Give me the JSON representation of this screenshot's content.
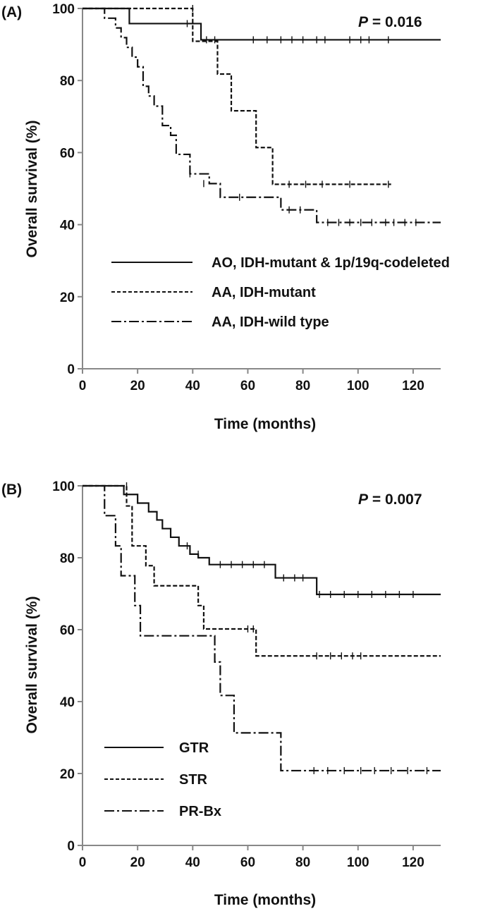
{
  "chart_data": [
    {
      "type": "line",
      "panel_label": "(A)",
      "p_value_label": "P",
      "p_value": "= 0.016",
      "xlabel": "Time (months)",
      "ylabel": "Overall survival (%)",
      "xlim": [
        0,
        130
      ],
      "ylim": [
        0,
        100
      ],
      "xticks": [
        "0",
        "20",
        "40",
        "60",
        "80",
        "100",
        "120"
      ],
      "yticks": [
        "0",
        "20",
        "40",
        "60",
        "80",
        "100"
      ],
      "grid": false,
      "legend_position": "center-right",
      "series": [
        {
          "name": "AO, IDH-mutant & 1p/19q-codeleted",
          "style": "solid",
          "x": [
            0,
            17,
            43,
            130
          ],
          "y": [
            100,
            95.8,
            91.3,
            91.3
          ],
          "censored_x": [
            38,
            45,
            48,
            62,
            67,
            72,
            76,
            80,
            85,
            88,
            97,
            101,
            104,
            111
          ],
          "censored_y": [
            95.8,
            91.3,
            91.3,
            91.3,
            91.3,
            91.3,
            91.3,
            91.3,
            91.3,
            91.3,
            91.3,
            91.3,
            91.3,
            91.3
          ]
        },
        {
          "name": "AA, IDH-mutant",
          "style": "dashed",
          "x": [
            0,
            40,
            49,
            54,
            63,
            69,
            112
          ],
          "y": [
            100,
            90.9,
            81.8,
            71.6,
            61.4,
            51.2,
            51.2
          ],
          "censored_x": [
            40,
            75,
            81,
            87,
            97,
            111
          ],
          "censored_y": [
            100,
            51.2,
            51.2,
            51.2,
            51.2,
            51.2
          ]
        },
        {
          "name": "AA, IDH-wild type",
          "style": "dash-dot",
          "x": [
            0,
            8,
            12,
            14,
            16,
            18,
            20,
            22,
            24,
            26,
            29,
            32,
            34,
            39,
            42,
            46,
            50,
            72,
            85,
            130
          ],
          "y": [
            100,
            97.3,
            94.6,
            91.9,
            89.2,
            86.5,
            83.8,
            78.4,
            75.7,
            72.9,
            67.5,
            64.8,
            59.5,
            54.1,
            54.1,
            51.4,
            47.6,
            44.1,
            40.6,
            40.6
          ],
          "censored_x": [
            39,
            44,
            57,
            75,
            79,
            89,
            93,
            97,
            101,
            105,
            110,
            113,
            117,
            121
          ],
          "censored_y": [
            54.1,
            51.4,
            47.6,
            44.1,
            44.1,
            40.6,
            40.6,
            40.6,
            40.6,
            40.6,
            40.6,
            40.6,
            40.6,
            40.6
          ]
        }
      ]
    },
    {
      "type": "line",
      "panel_label": "(B)",
      "p_value_label": "P",
      "p_value": "= 0.007",
      "xlabel": "Time (months)",
      "ylabel": "Overall survival (%)",
      "xlim": [
        0,
        130
      ],
      "ylim": [
        0,
        100
      ],
      "xticks": [
        "0",
        "20",
        "40",
        "60",
        "80",
        "100",
        "120"
      ],
      "yticks": [
        "0",
        "20",
        "40",
        "60",
        "80",
        "100"
      ],
      "grid": false,
      "legend_position": "lower-left",
      "series": [
        {
          "name": "GTR",
          "style": "solid",
          "x": [
            0,
            15,
            20,
            24,
            27,
            29,
            32,
            35,
            39,
            42,
            46,
            70,
            85,
            130
          ],
          "y": [
            100,
            97.6,
            95.2,
            92.8,
            90.5,
            88.1,
            85.7,
            83.3,
            81.0,
            80.0,
            78.1,
            74.4,
            69.8,
            69.8
          ],
          "censored_x": [
            38,
            42,
            50,
            54,
            58,
            62,
            66,
            73,
            77,
            80,
            86,
            90,
            95,
            100,
            105,
            110,
            115,
            120
          ],
          "censored_y": [
            83.3,
            81.0,
            78.1,
            78.1,
            78.1,
            78.1,
            78.1,
            74.4,
            74.4,
            74.4,
            69.8,
            69.8,
            69.8,
            69.8,
            69.8,
            69.8,
            69.8,
            69.8
          ]
        },
        {
          "name": "STR",
          "style": "dashed",
          "x": [
            0,
            16,
            18,
            23,
            26,
            42,
            44,
            63,
            130
          ],
          "y": [
            100,
            94.4,
            83.3,
            77.8,
            72.2,
            66.7,
            60.2,
            52.7,
            52.7
          ],
          "censored_x": [
            16,
            60,
            62,
            85,
            90,
            94,
            98,
            101
          ],
          "censored_y": [
            100,
            60.2,
            60.2,
            52.7,
            52.7,
            52.7,
            52.7,
            52.7
          ]
        },
        {
          "name": "PR-Bx",
          "style": "dash-dot",
          "x": [
            0,
            8,
            12,
            14,
            19,
            21,
            48,
            50,
            55,
            72,
            130
          ],
          "y": [
            100,
            91.7,
            83.3,
            75.0,
            66.7,
            58.3,
            51.0,
            41.7,
            31.3,
            20.8,
            20.8
          ],
          "censored_x": [
            84,
            89,
            95,
            101,
            106,
            112,
            118,
            125
          ],
          "censored_y": [
            20.8,
            20.8,
            20.8,
            20.8,
            20.8,
            20.8,
            20.8,
            20.8
          ]
        }
      ]
    }
  ]
}
